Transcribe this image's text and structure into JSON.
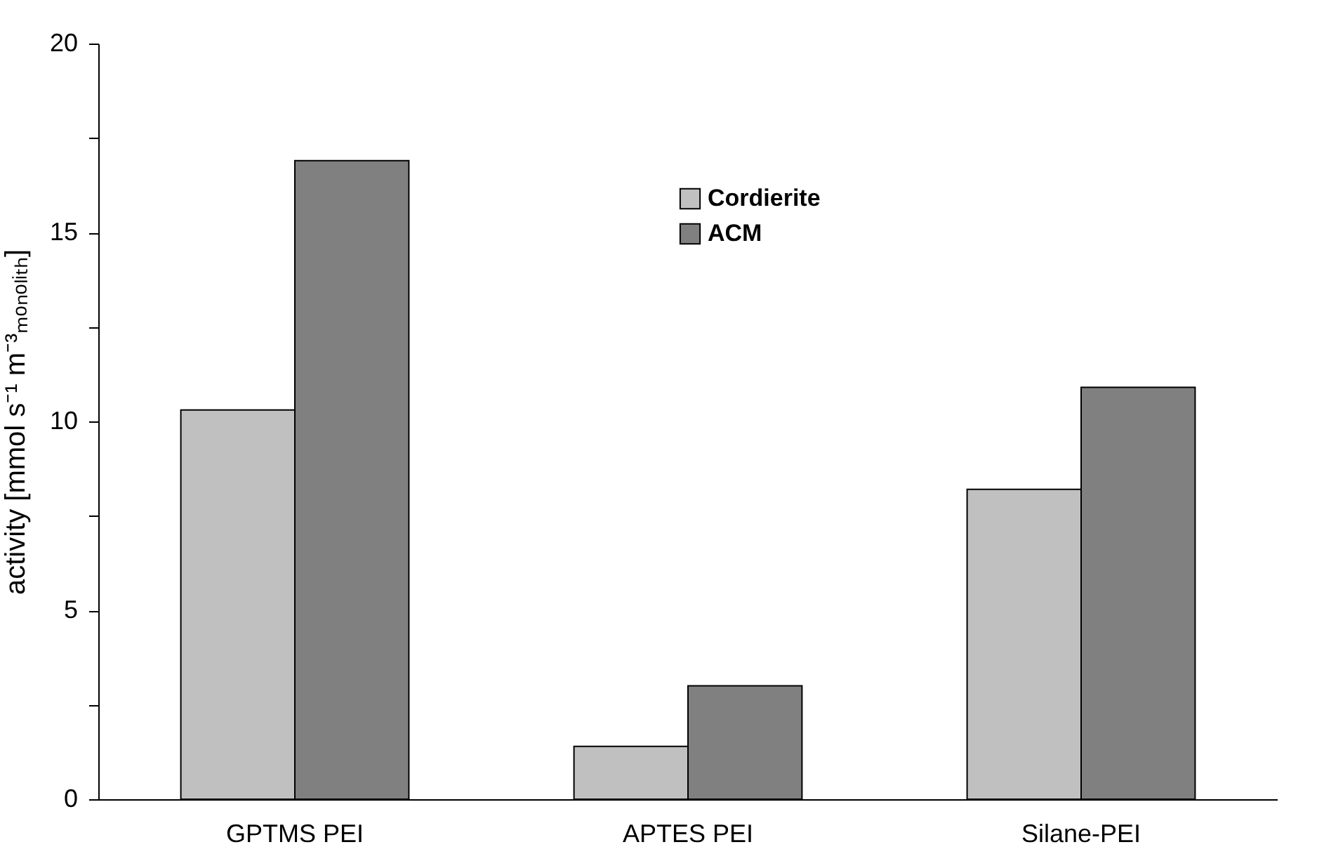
{
  "chart_data": {
    "type": "bar",
    "ylabel": "activity [mmol s⁻¹ m⁻³ₘₒₙₒₗᵢₜₕ]",
    "categories": [
      "GPTMS  PEI",
      "APTES  PEI",
      "Silane-PEI"
    ],
    "series": [
      {
        "name": "Cordierite",
        "color": "#c0c0c0",
        "values": [
          10.3,
          1.4,
          8.2
        ]
      },
      {
        "name": "ACM",
        "color": "#808080",
        "values": [
          16.9,
          3.0,
          10.9
        ]
      }
    ],
    "ylim": [
      0,
      20
    ],
    "yticks": [
      0,
      {
        "value": 2.5,
        "label": null
      },
      5,
      {
        "value": 7.5,
        "label": null
      },
      10,
      {
        "value": 12.5,
        "label": null
      },
      15,
      {
        "value": 17.5,
        "label": null
      },
      20
    ],
    "grid": false,
    "legend": "top"
  }
}
